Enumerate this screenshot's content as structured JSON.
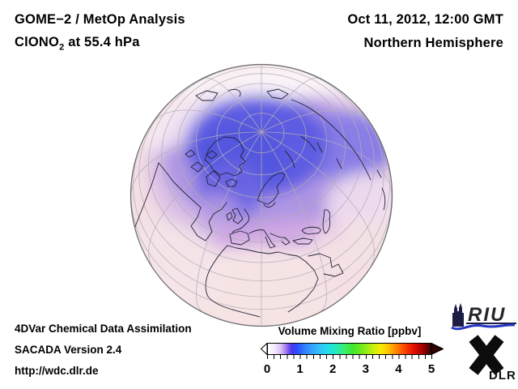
{
  "header": {
    "analysis_title": "GOME−2 / MetOp Analysis",
    "species_prefix": "ClONO",
    "species_subscript": "2",
    "species_suffix": " at 55.4 hPa",
    "datetime": "Oct 11, 2012, 12:00 GMT",
    "hemisphere": "Northern Hemisphere"
  },
  "credits": {
    "line1": "4DVar Chemical Data Assimilation",
    "line2": "SACADA Version 2.4",
    "line3": "http://wdc.dlr.de"
  },
  "colorbar": {
    "title": "Volume Mixing Ratio [ppbv]",
    "unit": "ppbv",
    "min": 0,
    "max": 5,
    "tick_labels": [
      "0",
      "1",
      "2",
      "3",
      "4",
      "5"
    ],
    "gradient_colors": [
      "#ffffff",
      "#d9c0f5",
      "#6c4fe8",
      "#2b50fa",
      "#35a1ff",
      "#27d9ee",
      "#3bee61",
      "#63e81f",
      "#d8ef0b",
      "#ffc103",
      "#fe5d01",
      "#f52d00",
      "#dd0f00",
      "#7d0000",
      "#3c0000"
    ]
  },
  "globe": {
    "projection": "orthographic",
    "view": "Northern Hemisphere",
    "field_palette": {
      "background_pink": "#f3dfe4",
      "lowest_white": "#fcf6f8",
      "mid_purple": "#a38ce2",
      "high_blue": "#5d5ce2",
      "europe_band_magenta": "#cfa5e2"
    }
  },
  "logos": {
    "riu_text": "RIU",
    "dlr_text": "DLR"
  }
}
